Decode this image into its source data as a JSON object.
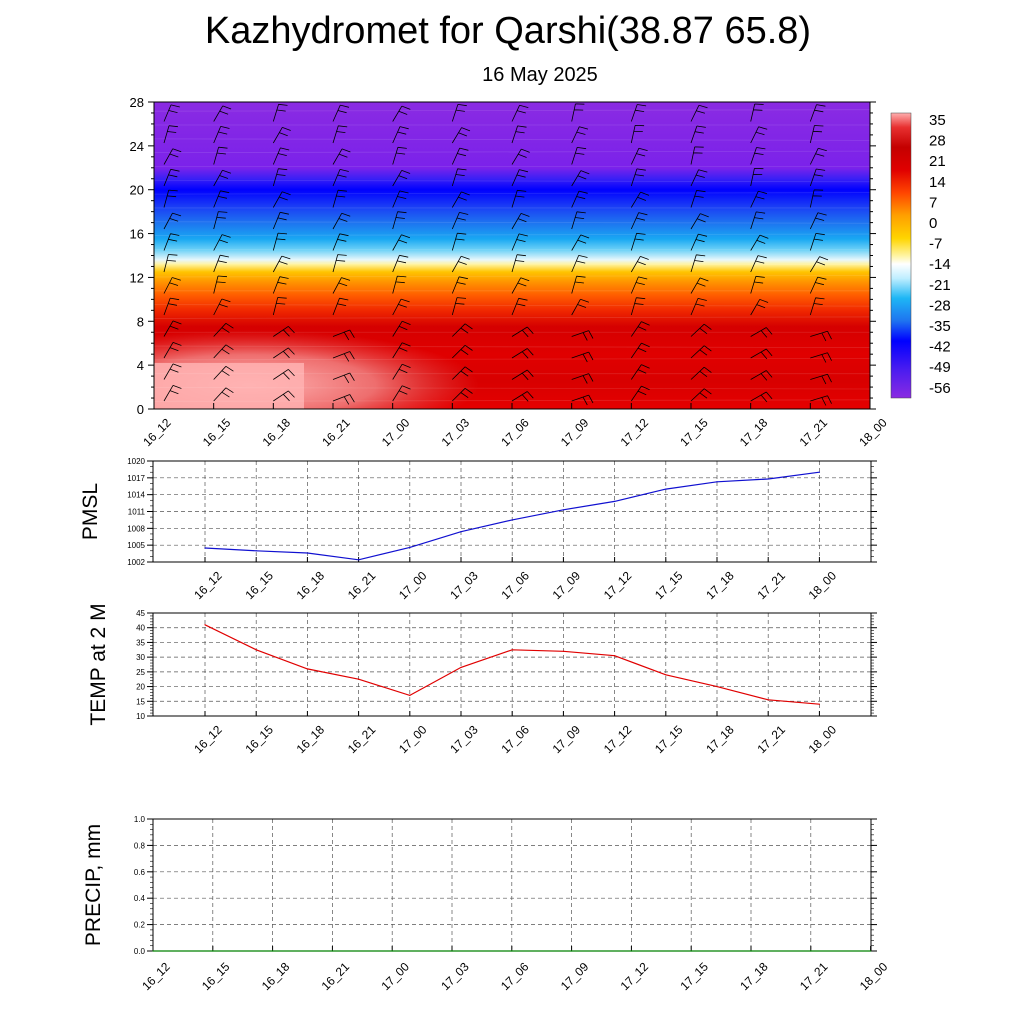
{
  "header": {
    "title": "Kazhydromet for Qarshi(38.87 65.8)",
    "subtitle": "16 May 2025"
  },
  "chart_data": [
    {
      "type": "heatmap",
      "title": "Kazhydromet for Qarshi(38.87 65.8)",
      "subtitle": "16 May 2025",
      "xlabel": "",
      "ylabel": "",
      "categories": [
        "16_12",
        "16_15",
        "16_18",
        "16_21",
        "17_00",
        "17_03",
        "17_06",
        "17_09",
        "17_12",
        "17_15",
        "17_18",
        "17_21",
        "18_00"
      ],
      "y_ticks": [
        0,
        4,
        8,
        12,
        16,
        20,
        24,
        28
      ],
      "ylim": [
        0,
        28
      ],
      "colorbar_labels": [
        "35",
        "28",
        "21",
        "14",
        "7",
        "0",
        "-7",
        "-14",
        "-21",
        "-28",
        "-35",
        "-42",
        "-49",
        "-56"
      ],
      "colorbar_range": [
        -60,
        38
      ],
      "wind_barbs": true,
      "colors": {
        "stops": [
          "#8a2be2",
          "#5a1cf0",
          "#0000ff",
          "#1d5ef2",
          "#1e90ff",
          "#00bfff",
          "#87ceeb",
          "#ffffff",
          "#fff176",
          "#ffd700",
          "#ffa500",
          "#ff4500",
          "#e00000",
          "#c40000",
          "#e34a4a",
          "#ffb6b6"
        ]
      }
    },
    {
      "type": "line",
      "title": "",
      "ylabel": "PMSL",
      "categories": [
        "16_12",
        "16_15",
        "16_18",
        "16_21",
        "17_00",
        "17_03",
        "17_06",
        "17_09",
        "17_12",
        "17_15",
        "17_18",
        "17_21",
        "18_00"
      ],
      "series": [
        {
          "values": [
            1004.5,
            1004.0,
            1003.6,
            1002.4,
            1004.6,
            1007.4,
            1009.5,
            1011.3,
            1012.8,
            1015.0,
            1016.3,
            1016.8,
            1018.0
          ]
        }
      ],
      "y_ticks": [
        1002,
        1005,
        1008,
        1011,
        1014,
        1017,
        1020
      ],
      "ylim": [
        1002,
        1020
      ],
      "grid": true,
      "color": "#1010d0"
    },
    {
      "type": "line",
      "title": "",
      "ylabel": "TEMP at 2 M",
      "categories": [
        "16_12",
        "16_15",
        "16_18",
        "16_21",
        "17_00",
        "17_03",
        "17_06",
        "17_09",
        "17_12",
        "17_15",
        "17_18",
        "17_21",
        "18_00"
      ],
      "series": [
        {
          "values": [
            41.0,
            32.5,
            26.0,
            22.5,
            17.0,
            26.5,
            32.5,
            32.0,
            30.5,
            24.0,
            20.0,
            15.5,
            14.0
          ]
        }
      ],
      "y_ticks": [
        10,
        15,
        20,
        25,
        30,
        35,
        40,
        45
      ],
      "ylim": [
        10,
        45
      ],
      "grid": true,
      "color": "#e00000"
    },
    {
      "type": "line",
      "title": "",
      "ylabel": "PRECIP, mm",
      "categories": [
        "16_12",
        "16_15",
        "16_18",
        "16_21",
        "17_00",
        "17_03",
        "17_06",
        "17_09",
        "17_12",
        "17_15",
        "17_18",
        "17_21",
        "18_00"
      ],
      "series": [
        {
          "values": [
            0,
            0,
            0,
            0,
            0,
            0,
            0,
            0,
            0,
            0,
            0,
            0,
            0
          ]
        }
      ],
      "y_ticks": [
        "0.0",
        "0.2",
        "0.4",
        "0.6",
        "0.8",
        "1.0"
      ],
      "ylim": [
        0,
        1
      ],
      "grid": true,
      "color": "#008000"
    }
  ]
}
